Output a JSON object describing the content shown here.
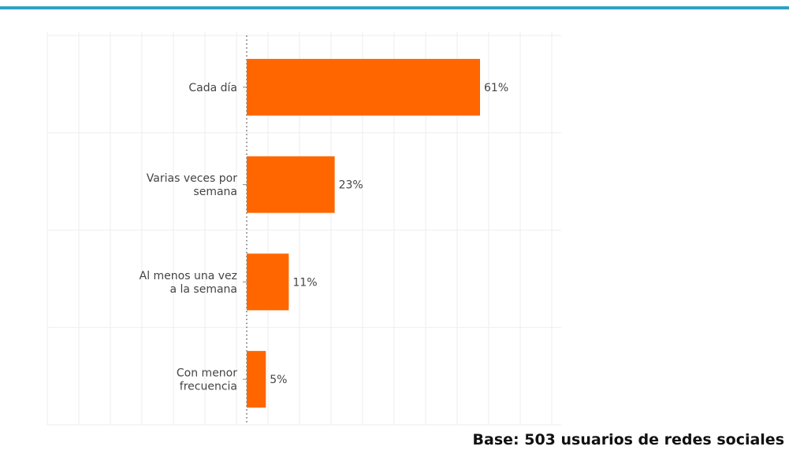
{
  "note": "Base: 503 usuarios de redes sociales",
  "colors": {
    "bar": "#ff6600",
    "accent_rule": "#2fa2c4",
    "grid": "#eeeeee",
    "axis": "#888888",
    "text": "#444444"
  },
  "chart_data": {
    "type": "bar",
    "orientation": "horizontal",
    "categories": [
      [
        "Cada día"
      ],
      [
        "Varias veces por",
        "semana"
      ],
      [
        "Al menos una vez",
        "a la semana"
      ],
      [
        "Con menor",
        "frecuencia"
      ]
    ],
    "values": [
      61,
      23,
      11,
      5
    ],
    "value_labels": [
      "61%",
      "23%",
      "11%",
      "5%"
    ],
    "xlim": [
      0,
      100
    ],
    "grid": true,
    "title": "",
    "xlabel": "",
    "ylabel": ""
  }
}
